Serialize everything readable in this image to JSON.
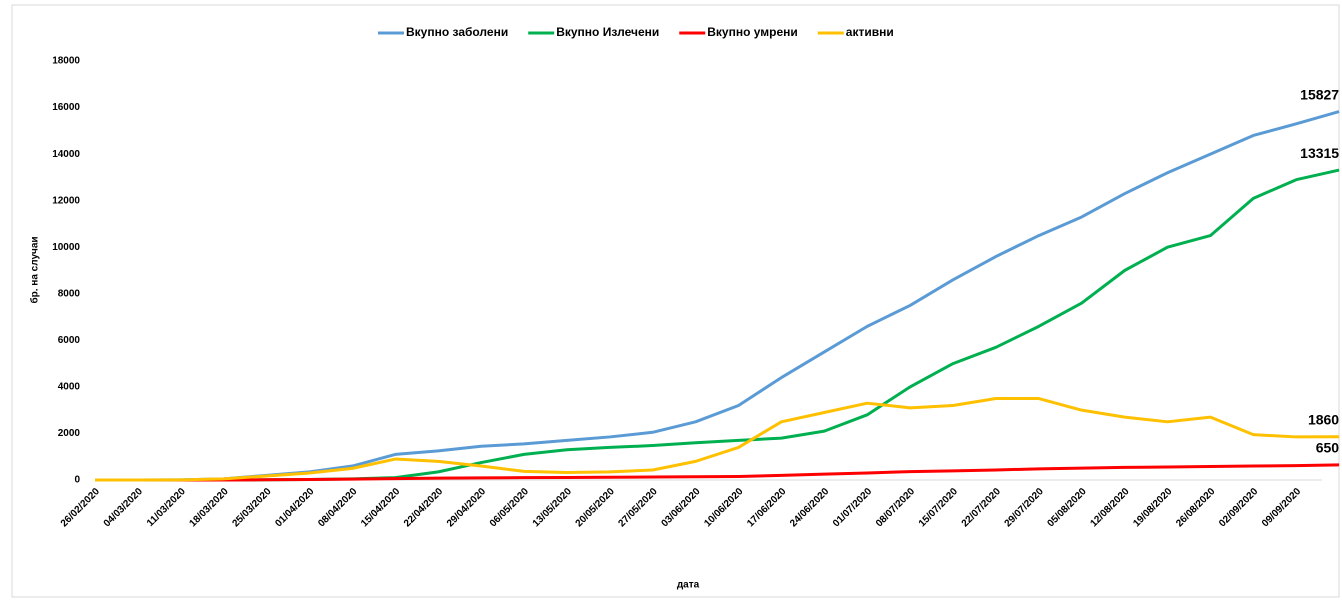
{
  "chart_data": {
    "type": "line",
    "categories": [
      "26/02/2020",
      "04/03/2020",
      "11/03/2020",
      "18/03/2020",
      "25/03/2020",
      "01/04/2020",
      "08/04/2020",
      "15/04/2020",
      "22/04/2020",
      "29/04/2020",
      "06/05/2020",
      "13/05/2020",
      "20/05/2020",
      "27/05/2020",
      "03/06/2020",
      "10/06/2020",
      "17/06/2020",
      "24/06/2020",
      "01/07/2020",
      "08/07/2020",
      "15/07/2020",
      "22/07/2020",
      "29/07/2020",
      "05/08/2020",
      "12/08/2020",
      "19/08/2020",
      "26/08/2020",
      "02/09/2020",
      "09/09/2020",
      null
    ],
    "series": [
      {
        "name": "Вкупно заболени",
        "color": "#5b9bd5",
        "values": [
          0,
          0,
          7,
          50,
          200,
          350,
          600,
          1100,
          1250,
          1450,
          1550,
          1700,
          1850,
          2050,
          2500,
          3200,
          4400,
          5500,
          6600,
          7500,
          8600,
          9600,
          10500,
          11300,
          12300,
          13200,
          14000,
          14800,
          15300,
          15827
        ]
      },
      {
        "name": "Вкупно Излечени",
        "color": "#00b050",
        "values": [
          0,
          0,
          0,
          2,
          10,
          20,
          50,
          100,
          350,
          750,
          1100,
          1300,
          1400,
          1480,
          1600,
          1700,
          1800,
          2100,
          2800,
          4000,
          5000,
          5700,
          6600,
          7600,
          9000,
          10000,
          10500,
          12100,
          12900,
          13315
        ]
      },
      {
        "name": "Вкупно умрени",
        "color": "#ff0000",
        "values": [
          0,
          0,
          0,
          1,
          10,
          20,
          40,
          60,
          80,
          90,
          100,
          110,
          120,
          130,
          140,
          150,
          200,
          250,
          300,
          360,
          390,
          430,
          480,
          510,
          540,
          560,
          580,
          600,
          620,
          650
        ]
      },
      {
        "name": "активни",
        "color": "#ffc000",
        "values": [
          0,
          0,
          5,
          50,
          170,
          300,
          500,
          900,
          800,
          600,
          370,
          320,
          350,
          430,
          800,
          1400,
          2500,
          2900,
          3300,
          3100,
          3200,
          3500,
          3500,
          3000,
          2700,
          2500,
          2700,
          1950,
          1850,
          1860
        ]
      }
    ],
    "x_label": "дата",
    "y_label": "бр. на случаи",
    "ylim": [
      0,
      18000
    ],
    "yticks": [
      0,
      2000,
      4000,
      6000,
      8000,
      10000,
      12000,
      14000,
      16000,
      18000
    ],
    "legend": "top"
  }
}
